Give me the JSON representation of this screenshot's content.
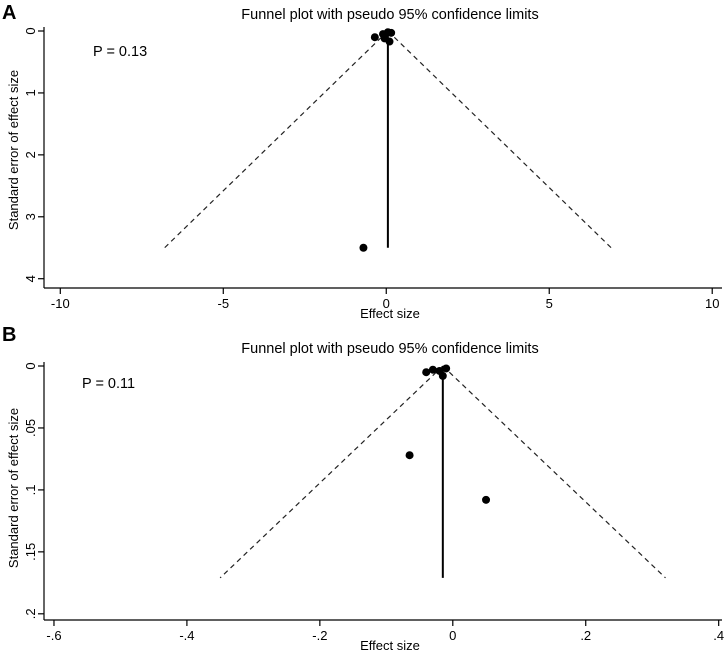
{
  "chart_data": [
    {
      "panel_label": "A",
      "type": "scatter",
      "subtype": "funnel",
      "title": "Funnel plot with pseudo 95% confidence limits",
      "xlabel": "Effect size",
      "ylabel": "Standard error of effect size",
      "annotation": "P = 0.13",
      "xlim": [
        -10.5,
        10.3
      ],
      "ylim": [
        0,
        4.15
      ],
      "y_inverted": true,
      "xticks": [
        -10,
        -5,
        0,
        5,
        10
      ],
      "xtick_labels": [
        "-10",
        "-5",
        "0",
        "5",
        "10"
      ],
      "yticks": [
        0,
        1,
        2,
        3,
        4
      ],
      "ytick_labels": [
        "0",
        "1",
        "2",
        "3",
        "4"
      ],
      "pooled_effect": 0.05,
      "funnel_apex": [
        0.05,
        0
      ],
      "funnel_bottom": [
        [
          -6.8,
          3.5
        ],
        [
          6.9,
          3.5
        ]
      ],
      "reference_line": {
        "x": 0.05,
        "y_from": 0,
        "y_to": 3.5
      },
      "points": [
        {
          "x": -0.35,
          "y": 0.1
        },
        {
          "x": -0.1,
          "y": 0.05
        },
        {
          "x": 0.05,
          "y": 0.02
        },
        {
          "x": 0.15,
          "y": 0.03
        },
        {
          "x": 0.1,
          "y": 0.17
        },
        {
          "x": -0.05,
          "y": 0.12
        },
        {
          "x": -0.7,
          "y": 3.5
        }
      ],
      "grid": false,
      "legend": "none"
    },
    {
      "panel_label": "B",
      "type": "scatter",
      "subtype": "funnel",
      "title": "Funnel plot with pseudo 95% confidence limits",
      "xlabel": "Effect size",
      "ylabel": "Standard error of effect size",
      "annotation": "P = 0.11",
      "xlim": [
        -0.615,
        0.405
      ],
      "ylim": [
        0,
        0.205
      ],
      "y_inverted": true,
      "xticks": [
        -0.6,
        -0.4,
        -0.2,
        0,
        0.2,
        0.4
      ],
      "xtick_labels": [
        "-.6",
        "-.4",
        "-.2",
        "0",
        ".2",
        ".4"
      ],
      "yticks": [
        0,
        0.05,
        0.1,
        0.15,
        0.2
      ],
      "ytick_labels": [
        "0",
        ".05",
        ".1",
        ".15",
        ".2"
      ],
      "pooled_effect": -0.015,
      "funnel_apex": [
        -0.015,
        0
      ],
      "funnel_bottom": [
        [
          -0.35,
          0.171
        ],
        [
          0.32,
          0.171
        ]
      ],
      "reference_line": {
        "x": -0.015,
        "y_from": 0,
        "y_to": 0.171
      },
      "points": [
        {
          "x": -0.04,
          "y": 0.005
        },
        {
          "x": -0.03,
          "y": 0.003
        },
        {
          "x": -0.02,
          "y": 0.004
        },
        {
          "x": -0.01,
          "y": 0.002
        },
        {
          "x": -0.015,
          "y": 0.008
        },
        {
          "x": -0.065,
          "y": 0.072
        },
        {
          "x": 0.05,
          "y": 0.108
        }
      ],
      "grid": false,
      "legend": "none"
    }
  ]
}
